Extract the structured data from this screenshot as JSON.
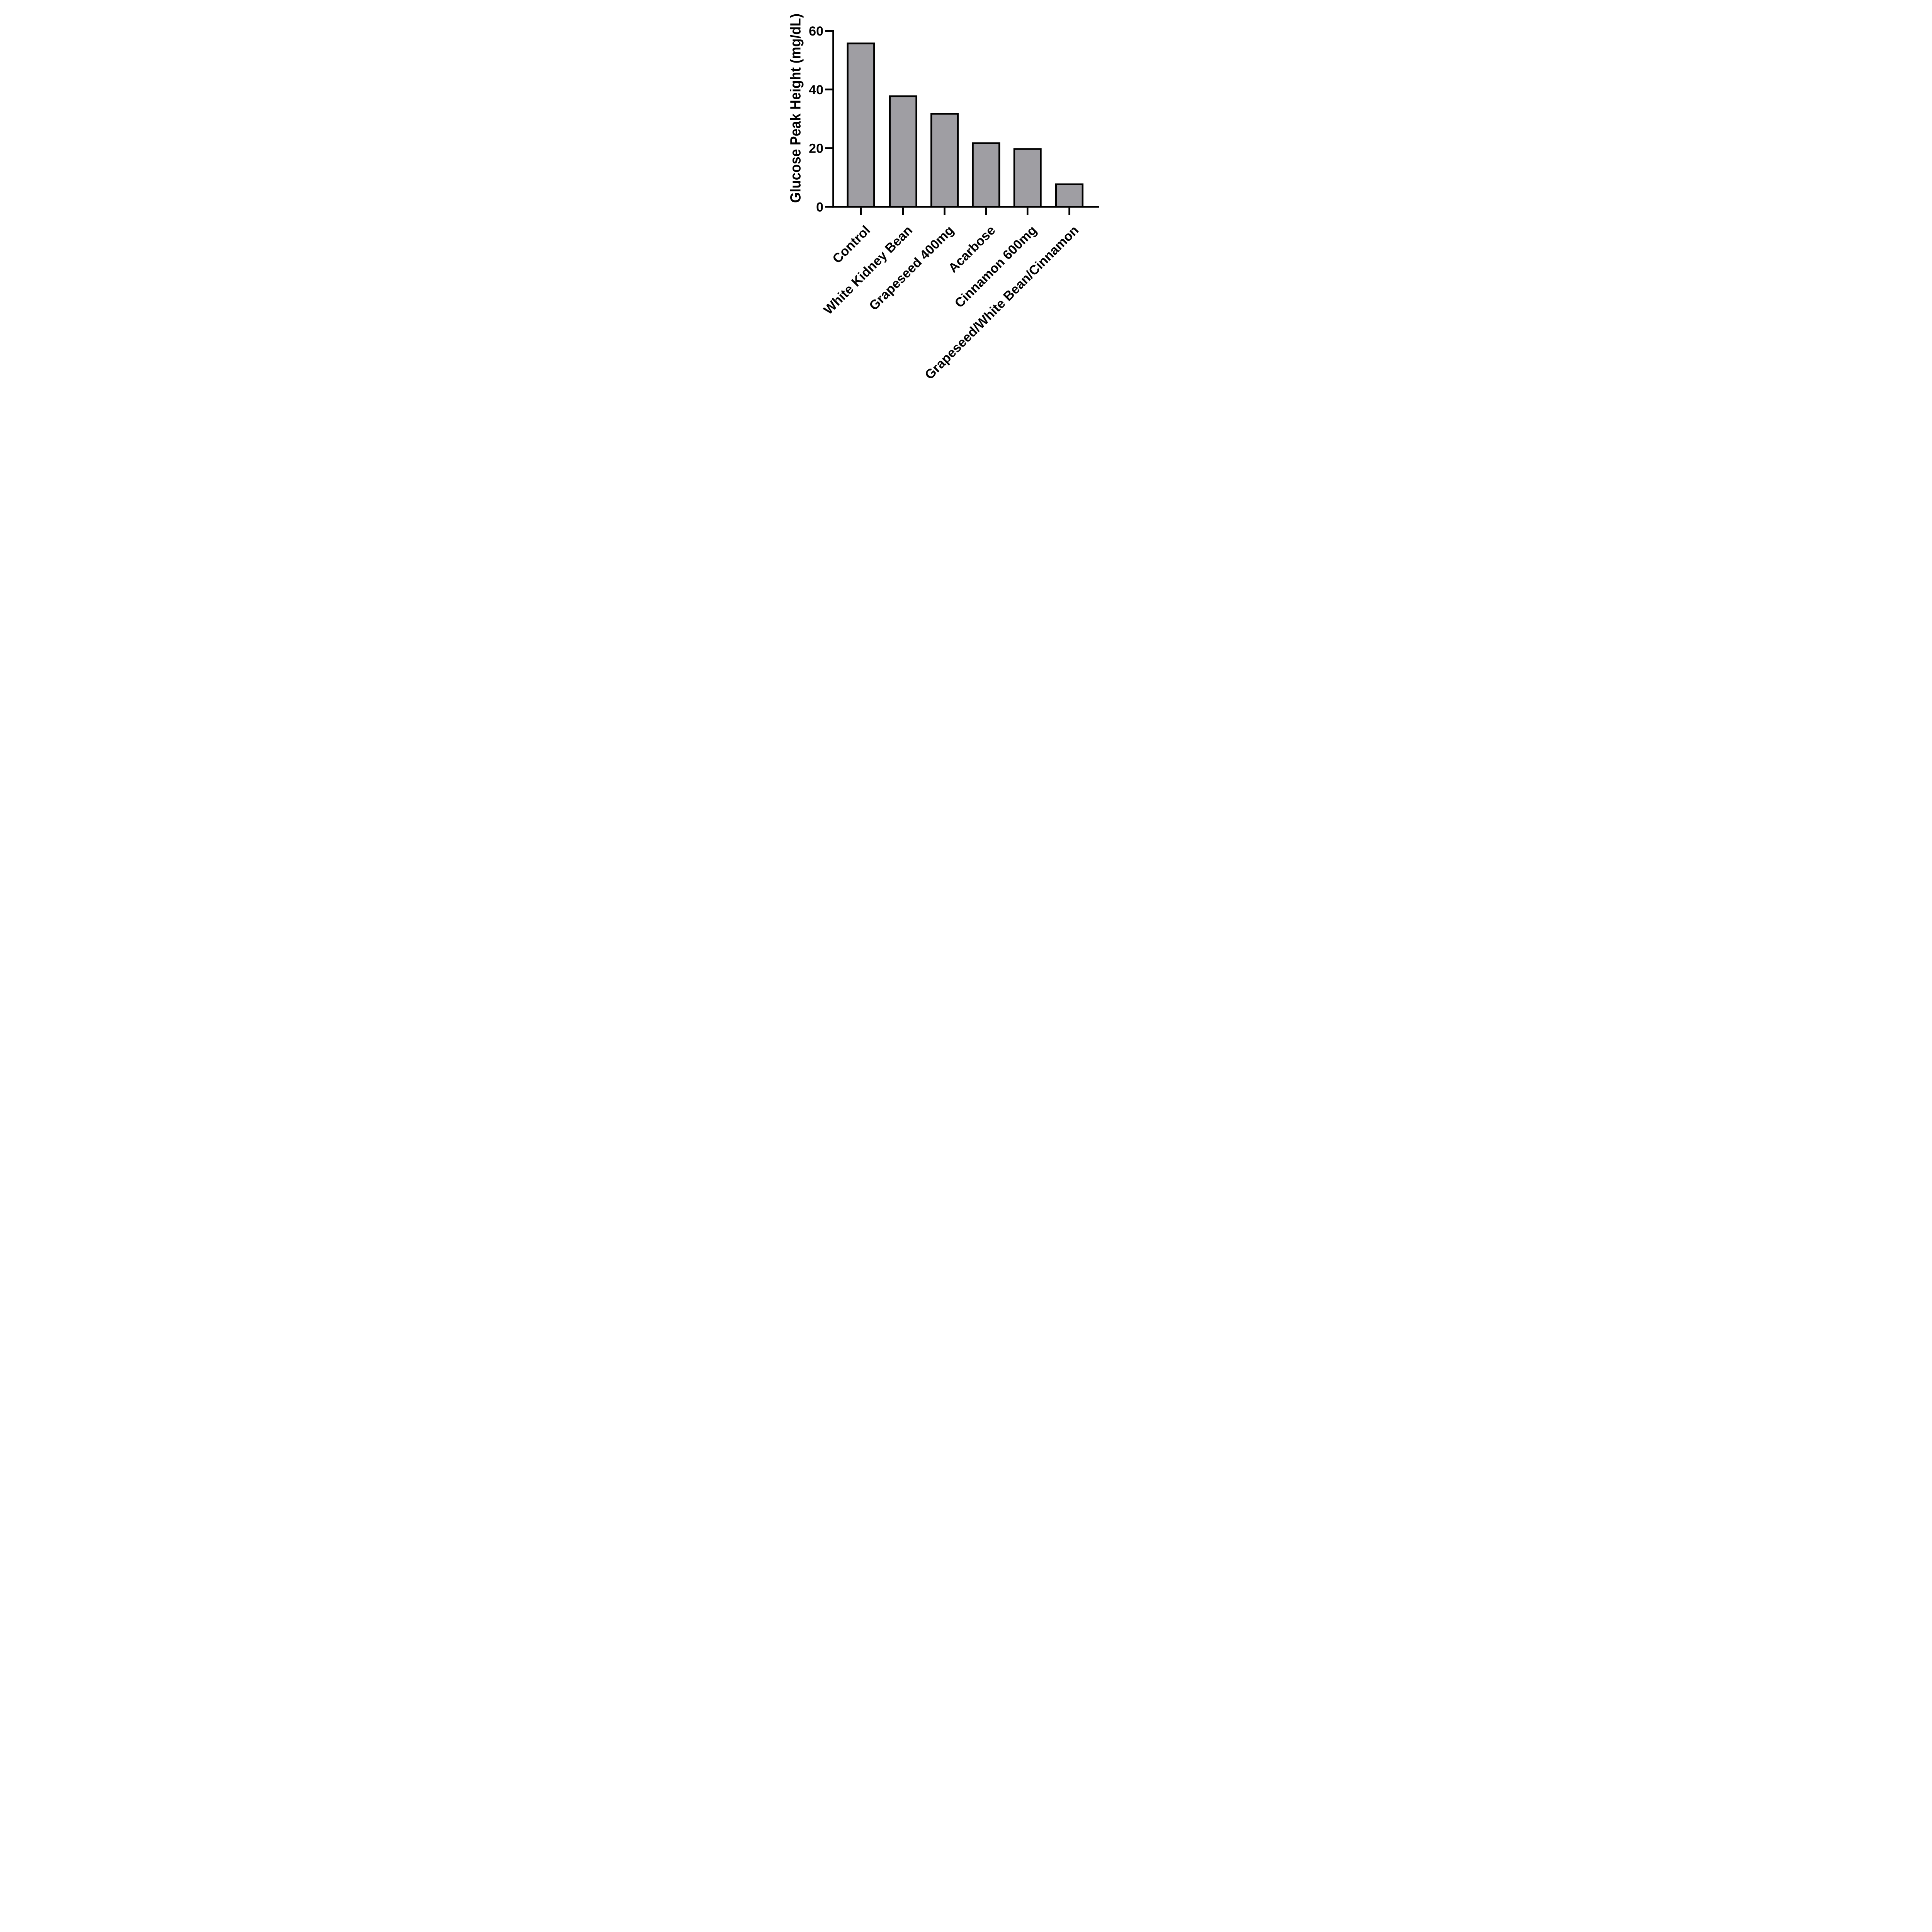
{
  "chart_data": {
    "type": "bar",
    "title": "",
    "ylabel": "Glucose Peak Height (mg/dL)",
    "xlabel": "",
    "categories": [
      "Control",
      "White Kidney Bean",
      "Grapeseed 400mg",
      "Acarbose",
      "Cinnamon 600mg",
      "Grapeseed/White Bean/Cinnamon"
    ],
    "values": [
      56,
      38,
      32,
      22,
      20,
      8
    ],
    "value_unit": "mg/dL",
    "ylim": [
      0,
      60
    ],
    "yticks": [
      0,
      20,
      40,
      60
    ],
    "ytick_labels": [
      "0",
      "20",
      "40",
      "60"
    ],
    "grid": false,
    "legend_position": "none",
    "bar_fill_color": "#9F9EA3",
    "bar_outline_color": "#000000",
    "axis_color": "#000000",
    "background_color": "#FFFFFF",
    "x_label_rotation_degrees": -45
  }
}
